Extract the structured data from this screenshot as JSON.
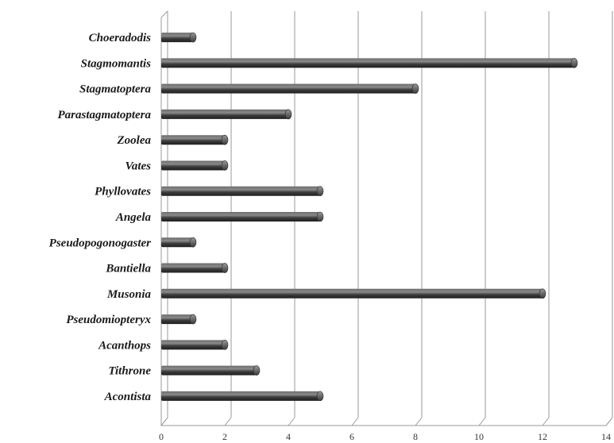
{
  "chart_data": {
    "type": "bar",
    "orientation": "horizontal",
    "categories": [
      "Choeradodis",
      "Stagmomantis",
      "Stagmatoptera",
      "Parastagmatoptera",
      "Zoolea",
      "Vates",
      "Phyllovates",
      "Angela",
      "Pseudopogonogaster",
      "Bantiella",
      "Musonia",
      "Pseudomiopteryx",
      "Acanthops",
      "Tithrone",
      "Acontista"
    ],
    "values": [
      1,
      13,
      8,
      4,
      2,
      2,
      5,
      5,
      1,
      2,
      12,
      1,
      2,
      3,
      5
    ],
    "xlim": [
      0,
      14
    ],
    "xticks": [
      "0",
      "2",
      "4",
      "6",
      "8",
      "10",
      "12",
      "14"
    ],
    "title": "",
    "xlabel": "",
    "ylabel": "",
    "grid": "vertical",
    "bar_color": "#4a4a4a",
    "style": "3d-cylinder"
  }
}
